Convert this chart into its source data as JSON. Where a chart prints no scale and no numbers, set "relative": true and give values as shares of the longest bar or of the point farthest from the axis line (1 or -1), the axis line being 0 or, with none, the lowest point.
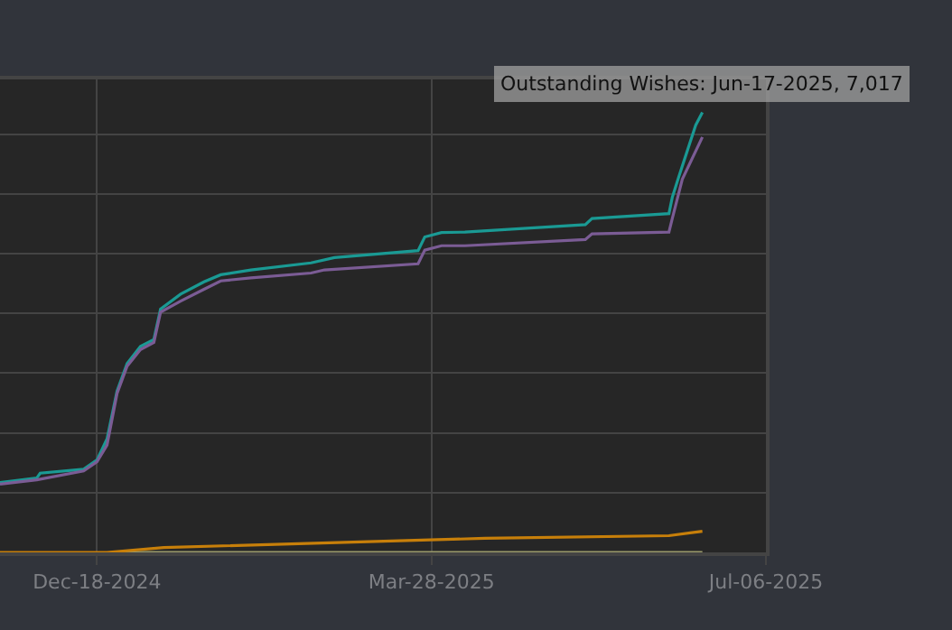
{
  "chart_data": {
    "type": "line",
    "relative": true,
    "grid": true,
    "marker": "none",
    "line_style": "solid",
    "xlim": [
      "2024-11-19",
      "2025-07-06"
    ],
    "xticks": [
      {
        "value": "2024-12-18",
        "label": "Dec-18-2024"
      },
      {
        "value": "2025-03-28",
        "label": "Mar-28-2025"
      },
      {
        "value": "2025-07-06",
        "label": "Jul-06-2025"
      }
    ],
    "annotations": [
      {
        "text": "Outstanding Wishes: Jun-17-2025, 7,017",
        "x": "2025-06-17",
        "y": 0.944
      }
    ],
    "series": [
      {
        "color": "#1a9a94",
        "x": [
          "2024-11-19",
          "2024-11-30",
          "2024-12-01",
          "2024-12-14",
          "2024-12-18",
          "2024-12-21",
          "2024-12-24",
          "2024-12-27",
          "2024-12-31",
          "2025-01-04",
          "2025-01-06",
          "2025-01-12",
          "2025-01-19",
          "2025-01-24",
          "2025-02-02",
          "2025-02-20",
          "2025-02-27",
          "2025-03-24",
          "2025-03-26",
          "2025-03-31",
          "2025-04-07",
          "2025-05-13",
          "2025-05-15",
          "2025-06-07",
          "2025-06-08",
          "2025-06-10",
          "2025-06-15",
          "2025-06-17"
        ],
        "values": [
          0.159,
          0.169,
          0.18,
          0.189,
          0.21,
          0.258,
          0.367,
          0.429,
          0.468,
          0.484,
          0.553,
          0.587,
          0.615,
          0.631,
          0.642,
          0.658,
          0.67,
          0.686,
          0.717,
          0.727,
          0.728,
          0.745,
          0.759,
          0.77,
          0.807,
          0.855,
          0.971,
          1
        ]
      },
      {
        "color": "#7b5c95",
        "x": [
          "2024-11-19",
          "2024-11-30",
          "2024-12-14",
          "2024-12-18",
          "2024-12-21",
          "2024-12-24",
          "2024-12-27",
          "2024-12-31",
          "2025-01-04",
          "2025-01-06",
          "2025-01-12",
          "2025-01-19",
          "2025-01-24",
          "2025-02-02",
          "2025-02-20",
          "2025-02-24",
          "2025-03-24",
          "2025-03-26",
          "2025-03-31",
          "2025-04-07",
          "2025-05-13",
          "2025-05-15",
          "2025-06-07",
          "2025-06-08",
          "2025-06-11",
          "2025-06-17"
        ],
        "values": [
          0.155,
          0.165,
          0.185,
          0.206,
          0.244,
          0.361,
          0.423,
          0.461,
          0.477,
          0.546,
          0.571,
          0.598,
          0.617,
          0.624,
          0.635,
          0.642,
          0.656,
          0.687,
          0.697,
          0.697,
          0.711,
          0.724,
          0.728,
          0.759,
          0.848,
          0.944
        ]
      },
      {
        "color": "#9a9a6a",
        "x": [
          "2024-12-24",
          "2025-06-17"
        ],
        "values": [
          0,
          0
        ]
      },
      {
        "color": "#c77f0a",
        "x": [
          "2024-11-19",
          "2024-12-21",
          "2025-01-07",
          "2025-04-13",
          "2025-06-07",
          "2025-06-17"
        ],
        "values": [
          0,
          0,
          0.011,
          0.032,
          0.038,
          0.048
        ]
      }
    ]
  }
}
